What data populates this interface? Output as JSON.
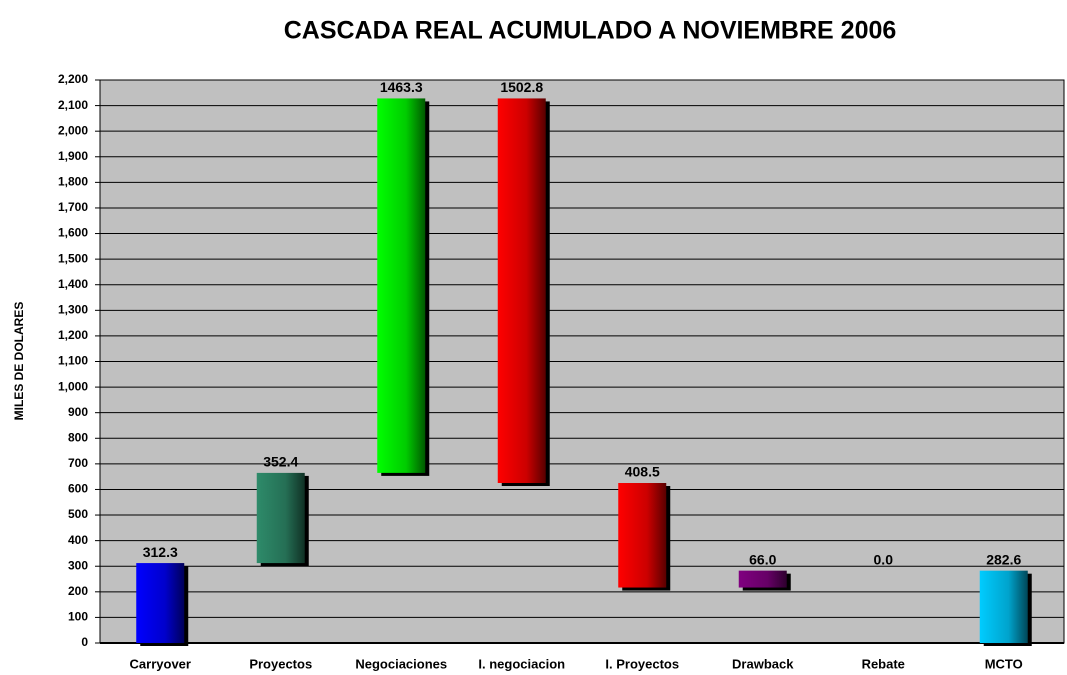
{
  "chart_data": {
    "type": "waterfall",
    "title": "CASCADA REAL ACUMULADO A NOVIEMBRE 2006",
    "y_label": "MILES DE DOLARES",
    "categories": [
      "Carryover",
      "Proyectos",
      "Negociaciones",
      "I. negociacion",
      "I. Proyectos",
      "Drawback",
      "Rebate",
      "MCTO"
    ],
    "values": [
      312.3,
      352.4,
      1463.3,
      1502.8,
      408.5,
      66.0,
      0.0,
      282.6
    ],
    "value_labels": [
      "312.3",
      "352.4",
      "1463.3",
      "1502.8",
      "408.5",
      "66.0",
      "0.0",
      "282.6"
    ],
    "measures": [
      "increase",
      "increase",
      "increase",
      "decrease",
      "decrease",
      "increase",
      "increase",
      "total"
    ],
    "colors": [
      "#0000ff",
      "#2e8b6a",
      "#00ff00",
      "#ff0000",
      "#ff0000",
      "#800080",
      "#808080",
      "#00ccff"
    ],
    "ylim": [
      0,
      2200
    ],
    "yticks": [
      0,
      100,
      200,
      300,
      400,
      500,
      600,
      700,
      800,
      900,
      {
        "value": 1000,
        "label": "1,000"
      },
      {
        "value": 1100,
        "label": "1,100"
      },
      {
        "value": 1200,
        "label": "1,200"
      },
      {
        "value": 1300,
        "label": "1,300"
      },
      {
        "value": 1400,
        "label": "1,400"
      },
      {
        "value": 1500,
        "label": "1,500"
      },
      {
        "value": 1600,
        "label": "1,600"
      },
      {
        "value": 1700,
        "label": "1,700"
      },
      {
        "value": 1800,
        "label": "1,800"
      },
      {
        "value": 1900,
        "label": "1,900"
      },
      {
        "value": 2000,
        "label": "2,000"
      },
      {
        "value": 2100,
        "label": "2,100"
      },
      {
        "value": 2200,
        "label": "2,200"
      }
    ],
    "grid": true,
    "plot_background": "#c0c0c0"
  }
}
